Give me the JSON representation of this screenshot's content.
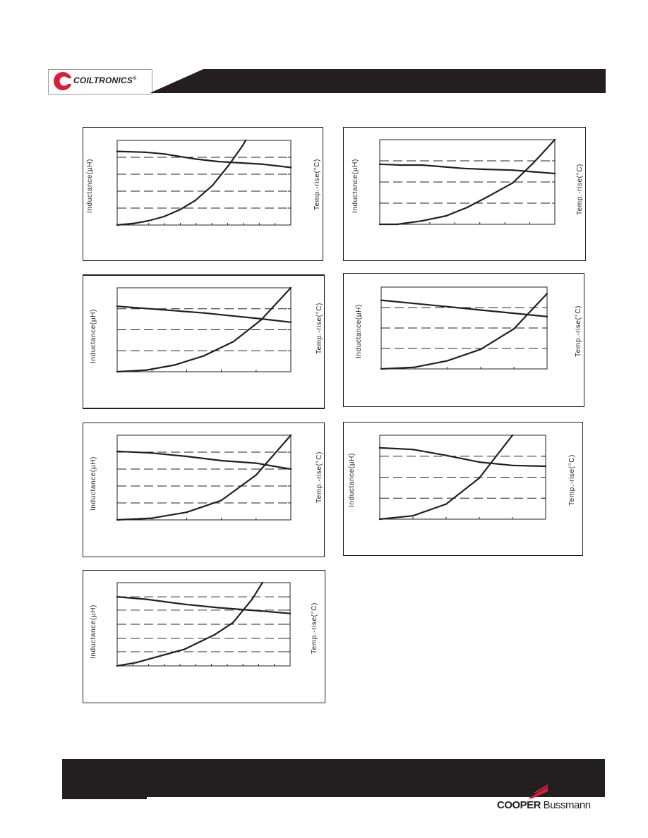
{
  "header": {
    "brand": "COILTRONICS",
    "registered_mark": "®",
    "brand_color": "#d71f3a",
    "banner_color": "#231f20"
  },
  "footer": {
    "company_bold": "COOPER",
    "company_regular": " Bussmann",
    "accent_color": "#d71f3a"
  },
  "chart_data": [
    {
      "type": "line",
      "ylabel": "Inductance(µH)",
      "y2label": "Temp.-rise(°C)",
      "xlim": [
        0,
        1
      ],
      "ylim": [
        0,
        1
      ],
      "y2lim": [
        0,
        1
      ],
      "grid": "dashed-horizontal",
      "x_minor_ticks": 11,
      "y_gridlines": [
        0.2,
        0.4,
        0.6,
        0.8
      ],
      "series": [
        {
          "role": "inductance",
          "axis": "left",
          "x": [
            0,
            0.16,
            0.27,
            0.45,
            0.58,
            0.74,
            0.83,
            1.0
          ],
          "y": [
            0.87,
            0.86,
            0.84,
            0.78,
            0.75,
            0.73,
            0.72,
            0.68
          ]
        },
        {
          "role": "temperature",
          "axis": "right",
          "x": [
            0,
            0.1,
            0.18,
            0.27,
            0.36,
            0.45,
            0.55,
            0.64,
            0.72,
            0.74
          ],
          "y": [
            0.0,
            0.02,
            0.05,
            0.1,
            0.18,
            0.29,
            0.47,
            0.7,
            0.93,
            1.0
          ]
        }
      ]
    },
    {
      "type": "line",
      "ylabel": "Inductance(µH)",
      "y2label": "Temp.-rise(°C)",
      "xlim": [
        0,
        1
      ],
      "ylim": [
        0,
        1
      ],
      "y2lim": [
        0,
        1
      ],
      "grid": "dashed-horizontal",
      "x_minor_ticks": 7,
      "y_gridlines": [
        0.25,
        0.5,
        0.75
      ],
      "series": [
        {
          "role": "inductance",
          "axis": "left",
          "x": [
            0,
            0.12,
            0.24,
            0.36,
            0.48,
            0.6,
            0.76,
            0.88,
            1.0
          ],
          "y": [
            0.71,
            0.7,
            0.7,
            0.68,
            0.66,
            0.65,
            0.64,
            0.62,
            0.6
          ]
        },
        {
          "role": "temperature",
          "axis": "right",
          "x": [
            0,
            0.1,
            0.24,
            0.38,
            0.5,
            0.62,
            0.76,
            0.88,
            1.0
          ],
          "y": [
            0.0,
            0.0,
            0.04,
            0.1,
            0.2,
            0.33,
            0.49,
            0.73,
            1.0
          ]
        }
      ]
    },
    {
      "type": "line",
      "ylabel": "Inductance(µH)",
      "y2label": "Temp.-rise(°C)",
      "xlim": [
        0,
        1
      ],
      "ylim": [
        0,
        1
      ],
      "y2lim": [
        0,
        1
      ],
      "grid": "dashed-horizontal",
      "x_minor_ticks": 5,
      "y_gridlines": [
        0.25,
        0.5,
        0.75
      ],
      "series": [
        {
          "role": "inductance",
          "axis": "left",
          "x": [
            0,
            0.25,
            0.5,
            0.83,
            1.0
          ],
          "y": [
            0.78,
            0.74,
            0.7,
            0.63,
            0.59
          ]
        },
        {
          "role": "temperature",
          "axis": "right",
          "x": [
            0,
            0.17,
            0.33,
            0.5,
            0.67,
            0.83,
            1.0
          ],
          "y": [
            0.0,
            0.02,
            0.08,
            0.19,
            0.36,
            0.62,
            1.0
          ]
        }
      ]
    },
    {
      "type": "line",
      "ylabel": "Inductance(µH)",
      "y2label": "Temp.-rise(°C)",
      "xlim": [
        0,
        1
      ],
      "ylim": [
        0,
        1
      ],
      "y2lim": [
        0,
        1
      ],
      "grid": "dashed-horizontal",
      "x_minor_ticks": 5,
      "y_gridlines": [
        0.25,
        0.5,
        0.75
      ],
      "series": [
        {
          "role": "inductance",
          "axis": "left",
          "x": [
            0,
            0.2,
            0.4,
            0.6,
            0.8,
            1.0
          ],
          "y": [
            0.84,
            0.8,
            0.76,
            0.72,
            0.68,
            0.64
          ]
        },
        {
          "role": "temperature",
          "axis": "right",
          "x": [
            0,
            0.2,
            0.4,
            0.6,
            0.8,
            1.0
          ],
          "y": [
            0.0,
            0.02,
            0.1,
            0.24,
            0.49,
            0.92
          ]
        }
      ]
    },
    {
      "type": "line",
      "ylabel": "Inductance(µH)",
      "y2label": "Temp.-rise(°C)",
      "xlim": [
        0,
        1
      ],
      "ylim": [
        0,
        1
      ],
      "y2lim": [
        0,
        1
      ],
      "grid": "dashed-horizontal",
      "x_minor_ticks": 5,
      "y_gridlines": [
        0.2,
        0.4,
        0.6,
        0.8
      ],
      "series": [
        {
          "role": "inductance",
          "axis": "left",
          "x": [
            0,
            0.2,
            0.4,
            0.6,
            0.8,
            1.0
          ],
          "y": [
            0.81,
            0.79,
            0.75,
            0.7,
            0.67,
            0.6
          ]
        },
        {
          "role": "temperature",
          "axis": "right",
          "x": [
            0,
            0.2,
            0.4,
            0.6,
            0.8,
            1.0
          ],
          "y": [
            0.0,
            0.02,
            0.09,
            0.23,
            0.53,
            1.0
          ]
        }
      ]
    },
    {
      "type": "line",
      "ylabel": "Inductance(µH)",
      "y2label": "Temp.-rise(°C)",
      "xlim": [
        0,
        1
      ],
      "ylim": [
        0,
        1
      ],
      "y2lim": [
        0,
        1
      ],
      "grid": "dashed-horizontal",
      "x_minor_ticks": 5,
      "y_gridlines": [
        0.25,
        0.5,
        0.75
      ],
      "series": [
        {
          "role": "inductance",
          "axis": "left",
          "x": [
            0,
            0.2,
            0.4,
            0.6,
            0.8,
            1.0
          ],
          "y": [
            0.85,
            0.83,
            0.76,
            0.68,
            0.64,
            0.63
          ]
        },
        {
          "role": "temperature",
          "axis": "right",
          "x": [
            0,
            0.2,
            0.4,
            0.6,
            0.8
          ],
          "y": [
            0.0,
            0.04,
            0.18,
            0.49,
            1.0
          ]
        }
      ]
    },
    {
      "type": "line",
      "ylabel": "Inductance(µH)",
      "y2label": "Temp.-rise(°C)",
      "xlim": [
        0,
        1
      ],
      "ylim": [
        0,
        1
      ],
      "y2lim": [
        0,
        1
      ],
      "grid": "dashed-horizontal",
      "x_minor_ticks": 11,
      "y_gridlines": [
        0.17,
        0.33,
        0.5,
        0.67,
        0.83
      ],
      "series": [
        {
          "role": "inductance",
          "axis": "left",
          "x": [
            0,
            0.17,
            0.39,
            0.58,
            0.83,
            1.0
          ],
          "y": [
            0.83,
            0.8,
            0.74,
            0.7,
            0.66,
            0.63
          ]
        },
        {
          "role": "temperature",
          "axis": "right",
          "x": [
            0,
            0.11,
            0.25,
            0.39,
            0.56,
            0.67,
            0.78,
            0.84
          ],
          "y": [
            0.0,
            0.04,
            0.12,
            0.2,
            0.37,
            0.52,
            0.8,
            1.0
          ]
        }
      ]
    }
  ]
}
